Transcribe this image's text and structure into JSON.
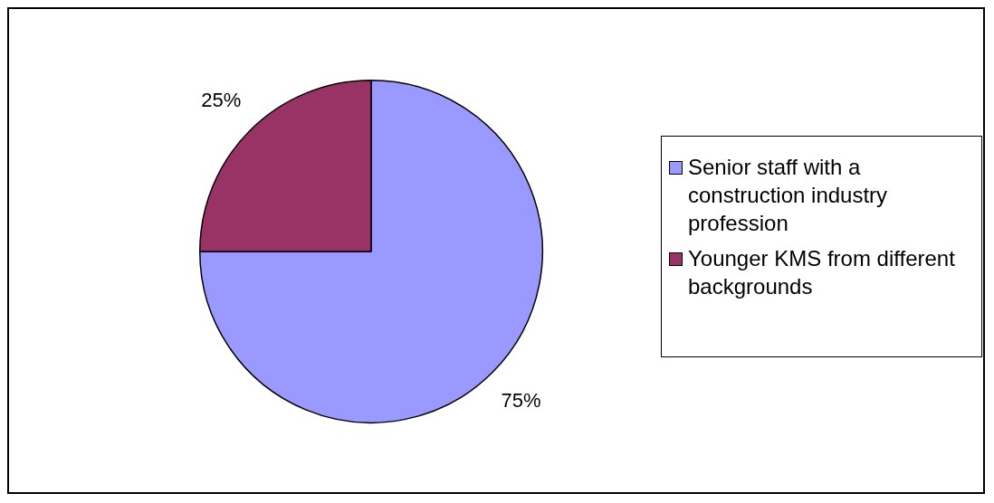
{
  "chart_data": {
    "type": "pie",
    "categories": [
      "Senior staff with a construction industry profession",
      "Younger KMS from different backgrounds"
    ],
    "values": [
      75,
      25
    ],
    "colors": [
      "#9999ff",
      "#993366"
    ],
    "value_labels": [
      "75%",
      "25%"
    ],
    "legend": "right"
  }
}
